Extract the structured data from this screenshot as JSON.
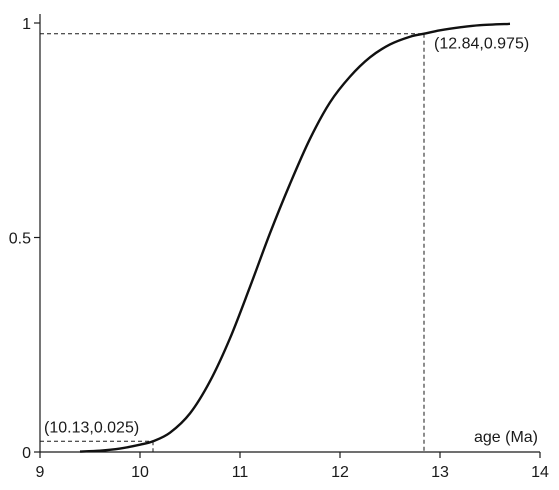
{
  "chart_data": {
    "type": "line",
    "title": "",
    "xlabel": "age (Ma)",
    "ylabel": "",
    "xlim": [
      9,
      14
    ],
    "ylim": [
      0,
      1
    ],
    "x_ticks": [
      9,
      10,
      11,
      12,
      13,
      14
    ],
    "x_tick_labels": [
      "9",
      "10",
      "11",
      "12",
      "13",
      "14"
    ],
    "y_ticks": [
      0,
      0.5,
      1
    ],
    "y_tick_labels": [
      "0",
      "0.5",
      "1"
    ],
    "grid": false,
    "series": [
      {
        "x": [
          9.4,
          9.6,
          9.8,
          10.0,
          10.13,
          10.3,
          10.5,
          10.7,
          10.9,
          11.1,
          11.3,
          11.5,
          11.7,
          11.9,
          12.1,
          12.3,
          12.5,
          12.7,
          12.84,
          13.0,
          13.2,
          13.4,
          13.7
        ],
        "y": [
          0.001,
          0.003,
          0.008,
          0.017,
          0.025,
          0.045,
          0.09,
          0.165,
          0.265,
          0.385,
          0.51,
          0.625,
          0.73,
          0.815,
          0.875,
          0.92,
          0.95,
          0.968,
          0.975,
          0.983,
          0.99,
          0.995,
          0.998
        ],
        "color": "#111111"
      }
    ],
    "annotations": [
      {
        "x": 10.13,
        "y": 0.025,
        "text": "(10.13,0.025)"
      },
      {
        "x": 12.84,
        "y": 0.975,
        "text": "(12.84,0.975)"
      }
    ]
  }
}
